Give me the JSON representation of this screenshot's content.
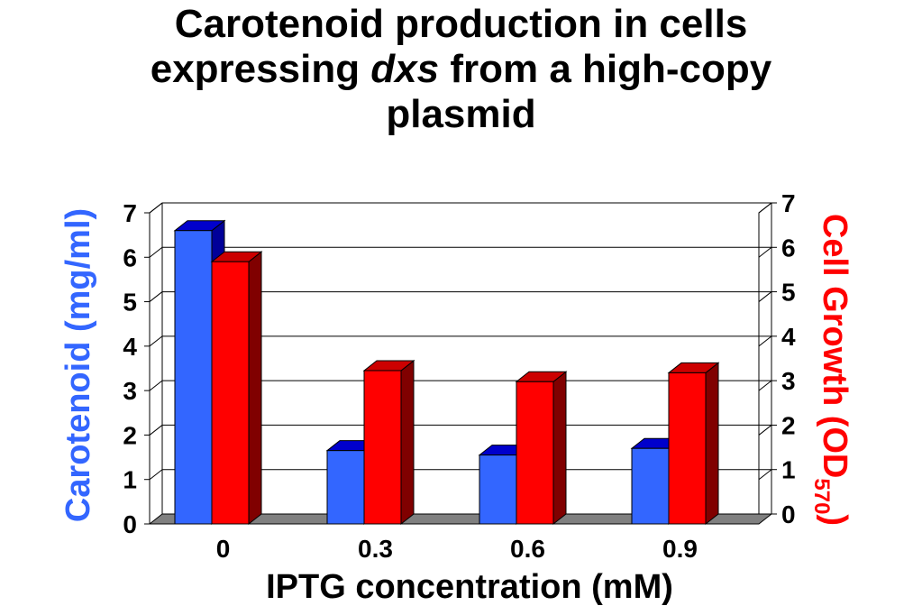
{
  "title": {
    "line1": "Carotenoid production in cells",
    "line2_pre": "expressing ",
    "line2_italic": "dxs",
    "line2_post": " from a high-copy",
    "line3": "plasmid"
  },
  "colors": {
    "carotenoid": "#3366ff",
    "carotenoid_top": "#0000cc",
    "carotenoid_side": "#000099",
    "growth": "#ff0000",
    "growth_top": "#cc0000",
    "growth_side": "#800000",
    "floor": "#808080",
    "left_axis_title": "#3366ff",
    "right_axis_title": "#ff0000"
  },
  "chart_data": {
    "type": "bar",
    "categories": [
      "0",
      "0.3",
      "0.6",
      "0.9"
    ],
    "series": [
      {
        "name": "Carotenoid (mg/ml)",
        "axis": "left",
        "values": [
          6.6,
          1.65,
          1.55,
          1.7
        ]
      },
      {
        "name": "Cell Growth (OD570)",
        "axis": "right",
        "values": [
          5.9,
          3.45,
          3.2,
          3.4
        ]
      }
    ],
    "xlabel": "IPTG concentration (mM)",
    "ylabel": "Carotenoid (mg/ml)",
    "ylabel_right_main": "Cell Growth (OD",
    "ylabel_right_sub": "570",
    "ylabel_right_close": ")",
    "ylim": [
      0,
      7
    ],
    "ylim_right": [
      0,
      7
    ],
    "yticks": [
      "0",
      "1",
      "2",
      "3",
      "4",
      "5",
      "6",
      "7"
    ],
    "yticks_right": [
      "0",
      "1",
      "2",
      "3",
      "4",
      "5",
      "6",
      "7"
    ],
    "grid": true,
    "legend": "none"
  }
}
